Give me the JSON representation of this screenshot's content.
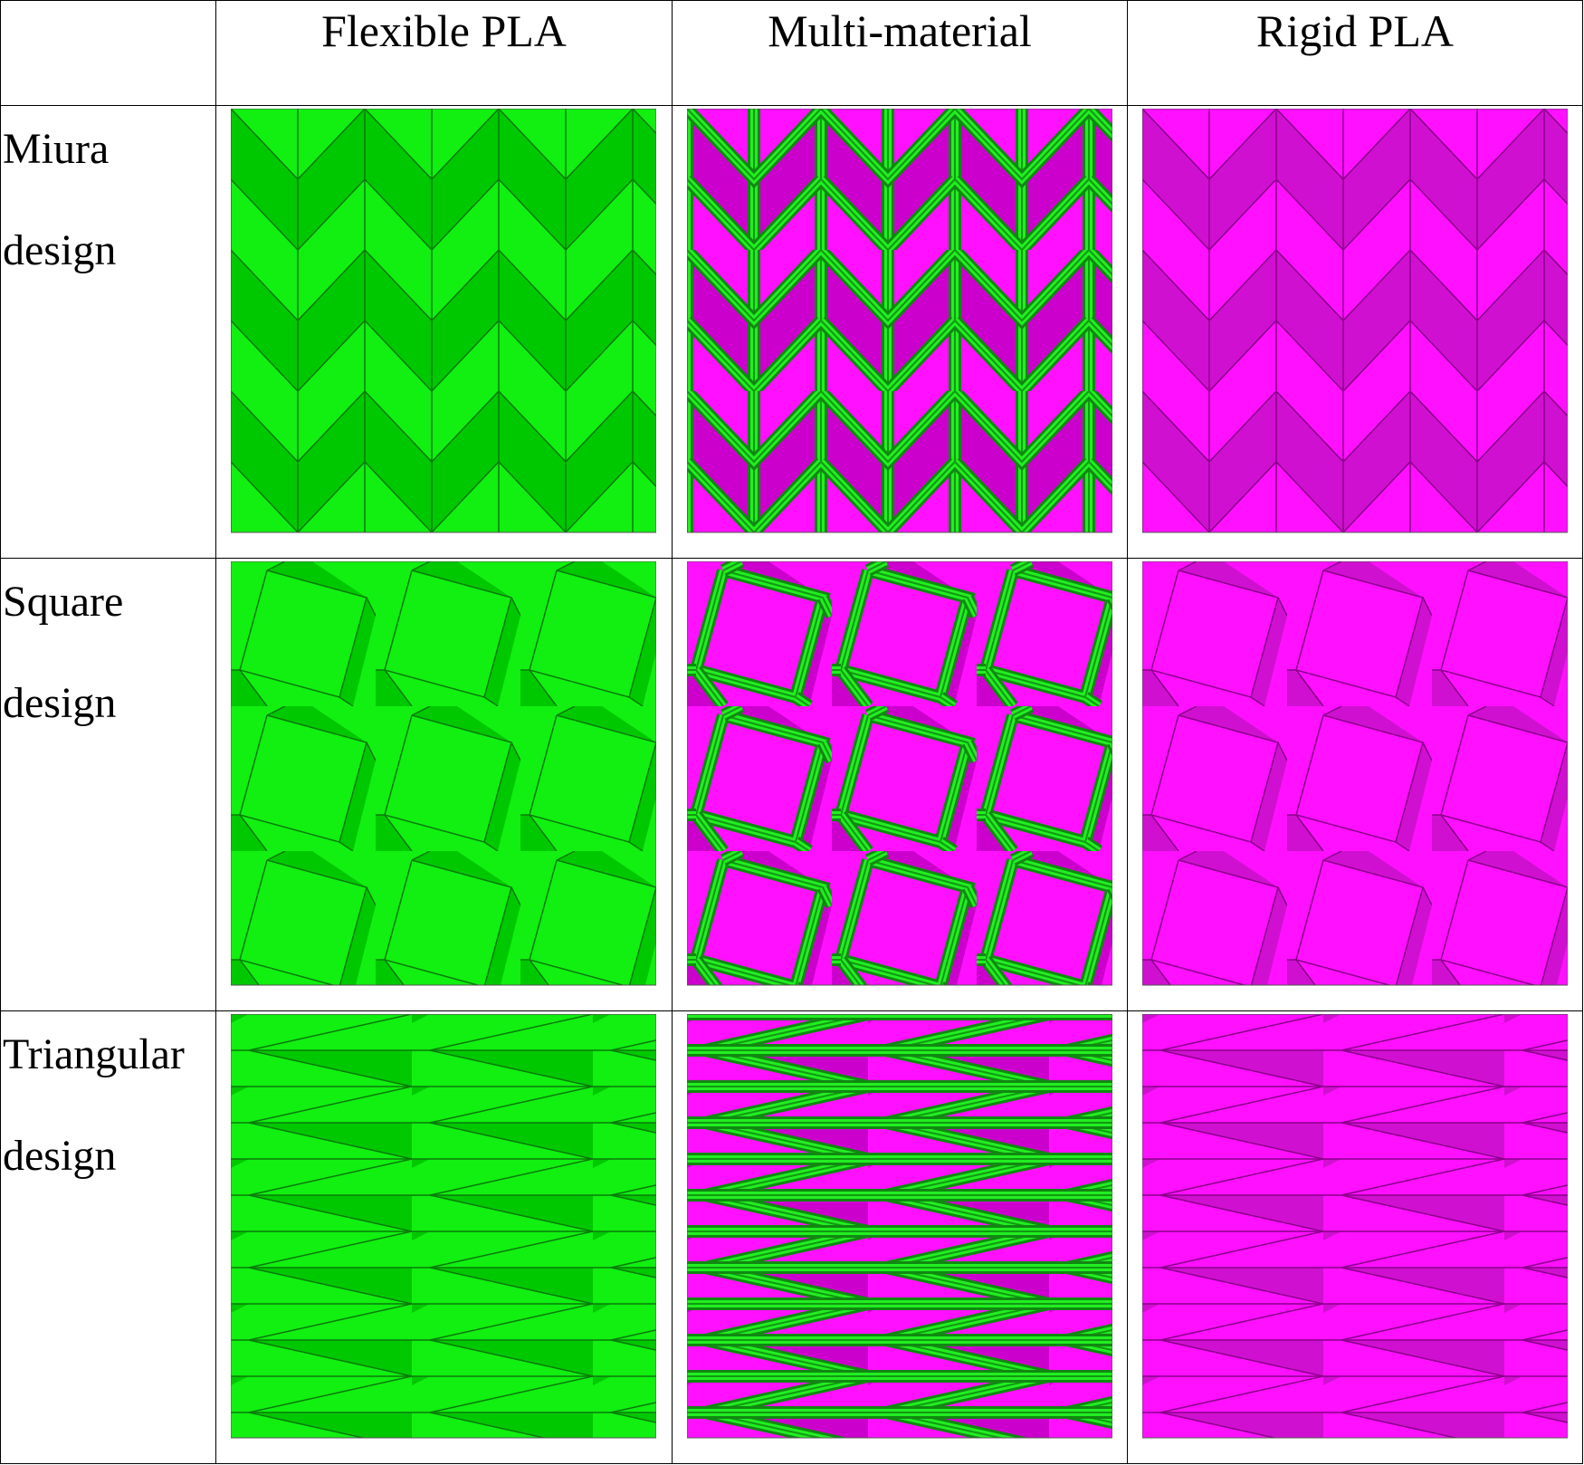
{
  "header": {
    "columns": [
      "Flexible PLA",
      "Multi-material",
      "Rigid PLA"
    ]
  },
  "rows": [
    {
      "label": "Miura design"
    },
    {
      "label": "Square design"
    },
    {
      "label": "Triangular design"
    }
  ]
}
